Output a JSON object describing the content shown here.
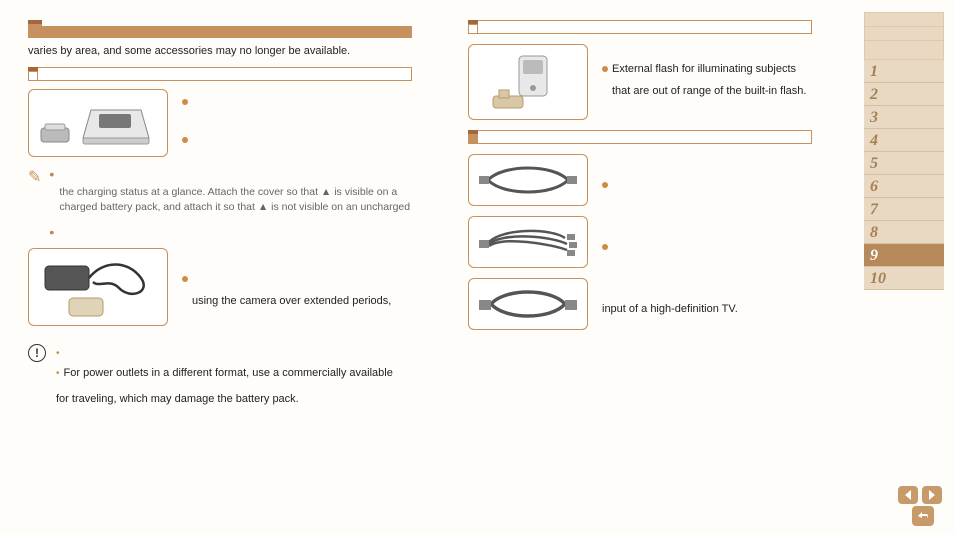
{
  "left": {
    "intro": "varies by area, and some accessories may no longer be available.",
    "tip1_line1": "the charging status at a glance. Attach the cover so that ▲ is visible on a",
    "tip1_line2": "charged battery pack, and attach it so that ▲ is not visible on an uncharged",
    "acKit_text": "using the camera over extended periods,",
    "warn_line1": "For power outlets in a different format, use a commercially available",
    "warn_line2": "for traveling, which may damage the battery pack."
  },
  "right": {
    "flash_line1": "External flash for illuminating subjects",
    "flash_line2": "that are out of range of the built-in flash.",
    "hdmi_text": "input of a high-definition TV."
  },
  "sidebar": {
    "numbers": [
      "1",
      "2",
      "3",
      "4",
      "5",
      "6",
      "7",
      "8",
      "9",
      "10"
    ],
    "active_index": 8
  },
  "colors": {
    "accent": "#c6915e",
    "accent_dark": "#a3663d",
    "panel": "#e9d9c2",
    "bullet": "#d08a4a"
  }
}
